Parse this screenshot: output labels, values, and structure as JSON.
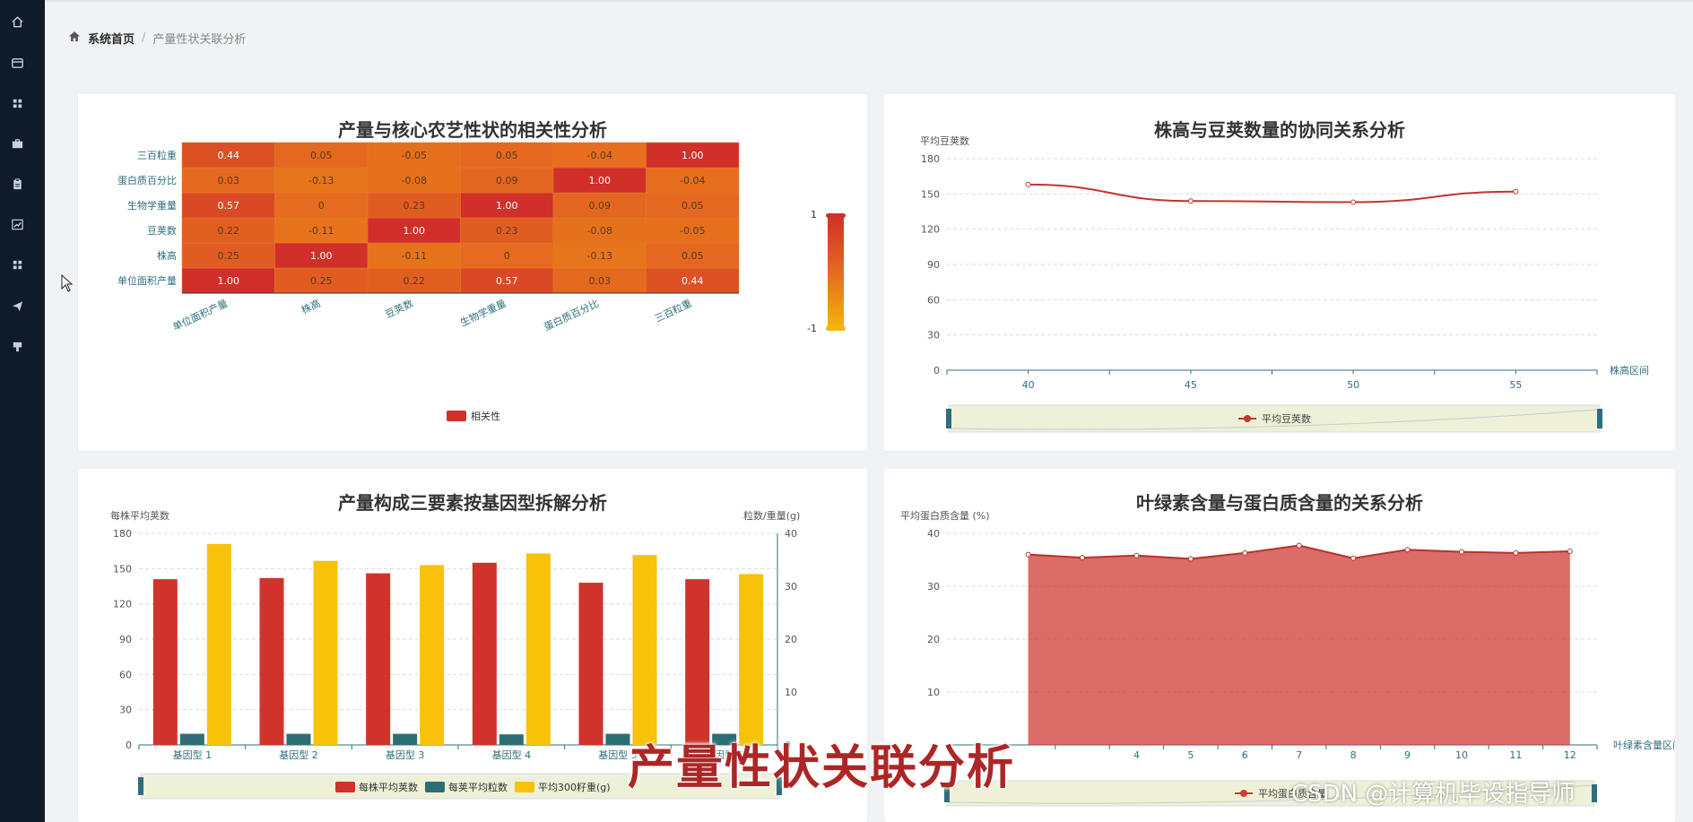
{
  "sidebar": {
    "icons": [
      "home-icon",
      "window-icon",
      "grid-icon",
      "briefcase-icon",
      "clipboard-icon",
      "line-chart-icon",
      "apps-icon",
      "send-icon",
      "stamp-icon"
    ]
  },
  "breadcrumb": {
    "home": "系统首页",
    "separator": "/",
    "current": "产量性状关联分析"
  },
  "heatmap_card": {
    "title": "产量与核心农艺性状的相关性分析"
  },
  "scatter_card": {
    "title": "株高与豆荚数量的协同关系分析"
  },
  "bar_card": {
    "title": "产量构成三要素按基因型拆解分析"
  },
  "area_card": {
    "title": "叶绿素含量与蛋白质含量的关系分析"
  },
  "overlay_caption": "产量性状关联分析",
  "watermark": "CSDN @计算机毕设指导师",
  "chart_data": [
    {
      "type": "heatmap",
      "title": "产量与核心农艺性状的相关性分析",
      "x_categories": [
        "单位面积产量",
        "株高",
        "豆荚数",
        "生物学重量",
        "蛋白质百分比",
        "三百粒重"
      ],
      "y_categories": [
        "单位面积产量",
        "株高",
        "豆荚数",
        "生物学重量",
        "蛋白质百分比",
        "三百粒重"
      ],
      "cells": [
        [
          "1.00",
          "0.25",
          "0.22",
          "0.57",
          "0.03",
          "0.44"
        ],
        [
          "0.25",
          "1.00",
          "-0.11",
          "0",
          "-0.13",
          "0.05"
        ],
        [
          "0.22",
          "-0.11",
          "1.00",
          "0.23",
          "-0.08",
          "-0.05"
        ],
        [
          "0.57",
          "0",
          "0.23",
          "1.00",
          "0.09",
          "0.05"
        ],
        [
          "0.03",
          "-0.13",
          "-0.08",
          "0.09",
          "1.00",
          "-0.04"
        ],
        [
          "0.44",
          "0.05",
          "-0.05",
          "0.05",
          "-0.04",
          "1.00"
        ]
      ],
      "legend": [
        "相关性"
      ],
      "visual_map": {
        "max": "1",
        "min": "-1",
        "colors": [
          "#d12f2a",
          "#e56b1f",
          "#f5b50b"
        ]
      }
    },
    {
      "type": "line",
      "title": "株高与豆荚数量的协同关系分析",
      "ylabel": "平均豆荚数",
      "xlabel": "株高区间",
      "x_ticks": [
        "40",
        "45",
        "50",
        "55"
      ],
      "y_ticks": [
        "0",
        "30",
        "60",
        "90",
        "120",
        "150",
        "180"
      ],
      "ylim": [
        0,
        180
      ],
      "xlim": [
        37.5,
        57.5
      ],
      "series": [
        {
          "name": "平均豆荚数",
          "x": [
            40,
            45,
            50,
            55
          ],
          "values": [
            158,
            144,
            143,
            152
          ],
          "color": "#c23531"
        }
      ],
      "legend": [
        "平均豆荚数"
      ]
    },
    {
      "type": "bar",
      "title": "产量构成三要素按基因型拆解分析",
      "ylabel_left": "每株平均荚数",
      "ylabel_right": "粒数/重量(g)",
      "categories": [
        "基因型 1",
        "基因型 2",
        "基因型 3",
        "基因型 4",
        "基因型 5",
        "基因型 6"
      ],
      "y_ticks_left": [
        "0",
        "30",
        "60",
        "90",
        "120",
        "150",
        "180"
      ],
      "y_ticks_right": [
        "0",
        "10",
        "20",
        "30",
        "40"
      ],
      "ylim_left": [
        0,
        180
      ],
      "ylim_right": [
        0,
        40
      ],
      "series": [
        {
          "name": "每株平均荚数",
          "axis": "left",
          "values": [
            141,
            142,
            146,
            155,
            138,
            141
          ],
          "color": "#d0332c"
        },
        {
          "name": "每荚平均粒数",
          "axis": "right",
          "values": [
            2.1,
            2.1,
            2.1,
            2.0,
            2.1,
            2.1
          ],
          "color": "#2d6e74"
        },
        {
          "name": "平均300籽重(g)",
          "axis": "right",
          "values": [
            38,
            34.8,
            34,
            36.2,
            35.9,
            32.3
          ],
          "color": "#f8c20a"
        }
      ],
      "legend": [
        "每株平均荚数",
        "每荚平均粒数",
        "平均300籽重(g)"
      ]
    },
    {
      "type": "area",
      "title": "叶绿素含量与蛋白质含量的关系分析",
      "ylabel": "平均蛋白质含量 (%)",
      "xlabel": "叶绿素含量区间",
      "x_ticks": [
        "4",
        "5",
        "6",
        "7",
        "8",
        "9",
        "10",
        "11",
        "12"
      ],
      "y_ticks": [
        "10",
        "20",
        "30",
        "40"
      ],
      "ylim": [
        0,
        40
      ],
      "series": [
        {
          "name": "平均蛋白质含量",
          "x": [
            2,
            3,
            4,
            5,
            6,
            7,
            8,
            9,
            10,
            11,
            12
          ],
          "values": [
            36.0,
            35.4,
            35.8,
            35.2,
            36.3,
            37.7,
            35.3,
            36.9,
            36.5,
            36.3,
            36.6
          ],
          "color": "#cf3b34"
        }
      ],
      "legend": [
        "平均蛋白质含量"
      ]
    }
  ]
}
